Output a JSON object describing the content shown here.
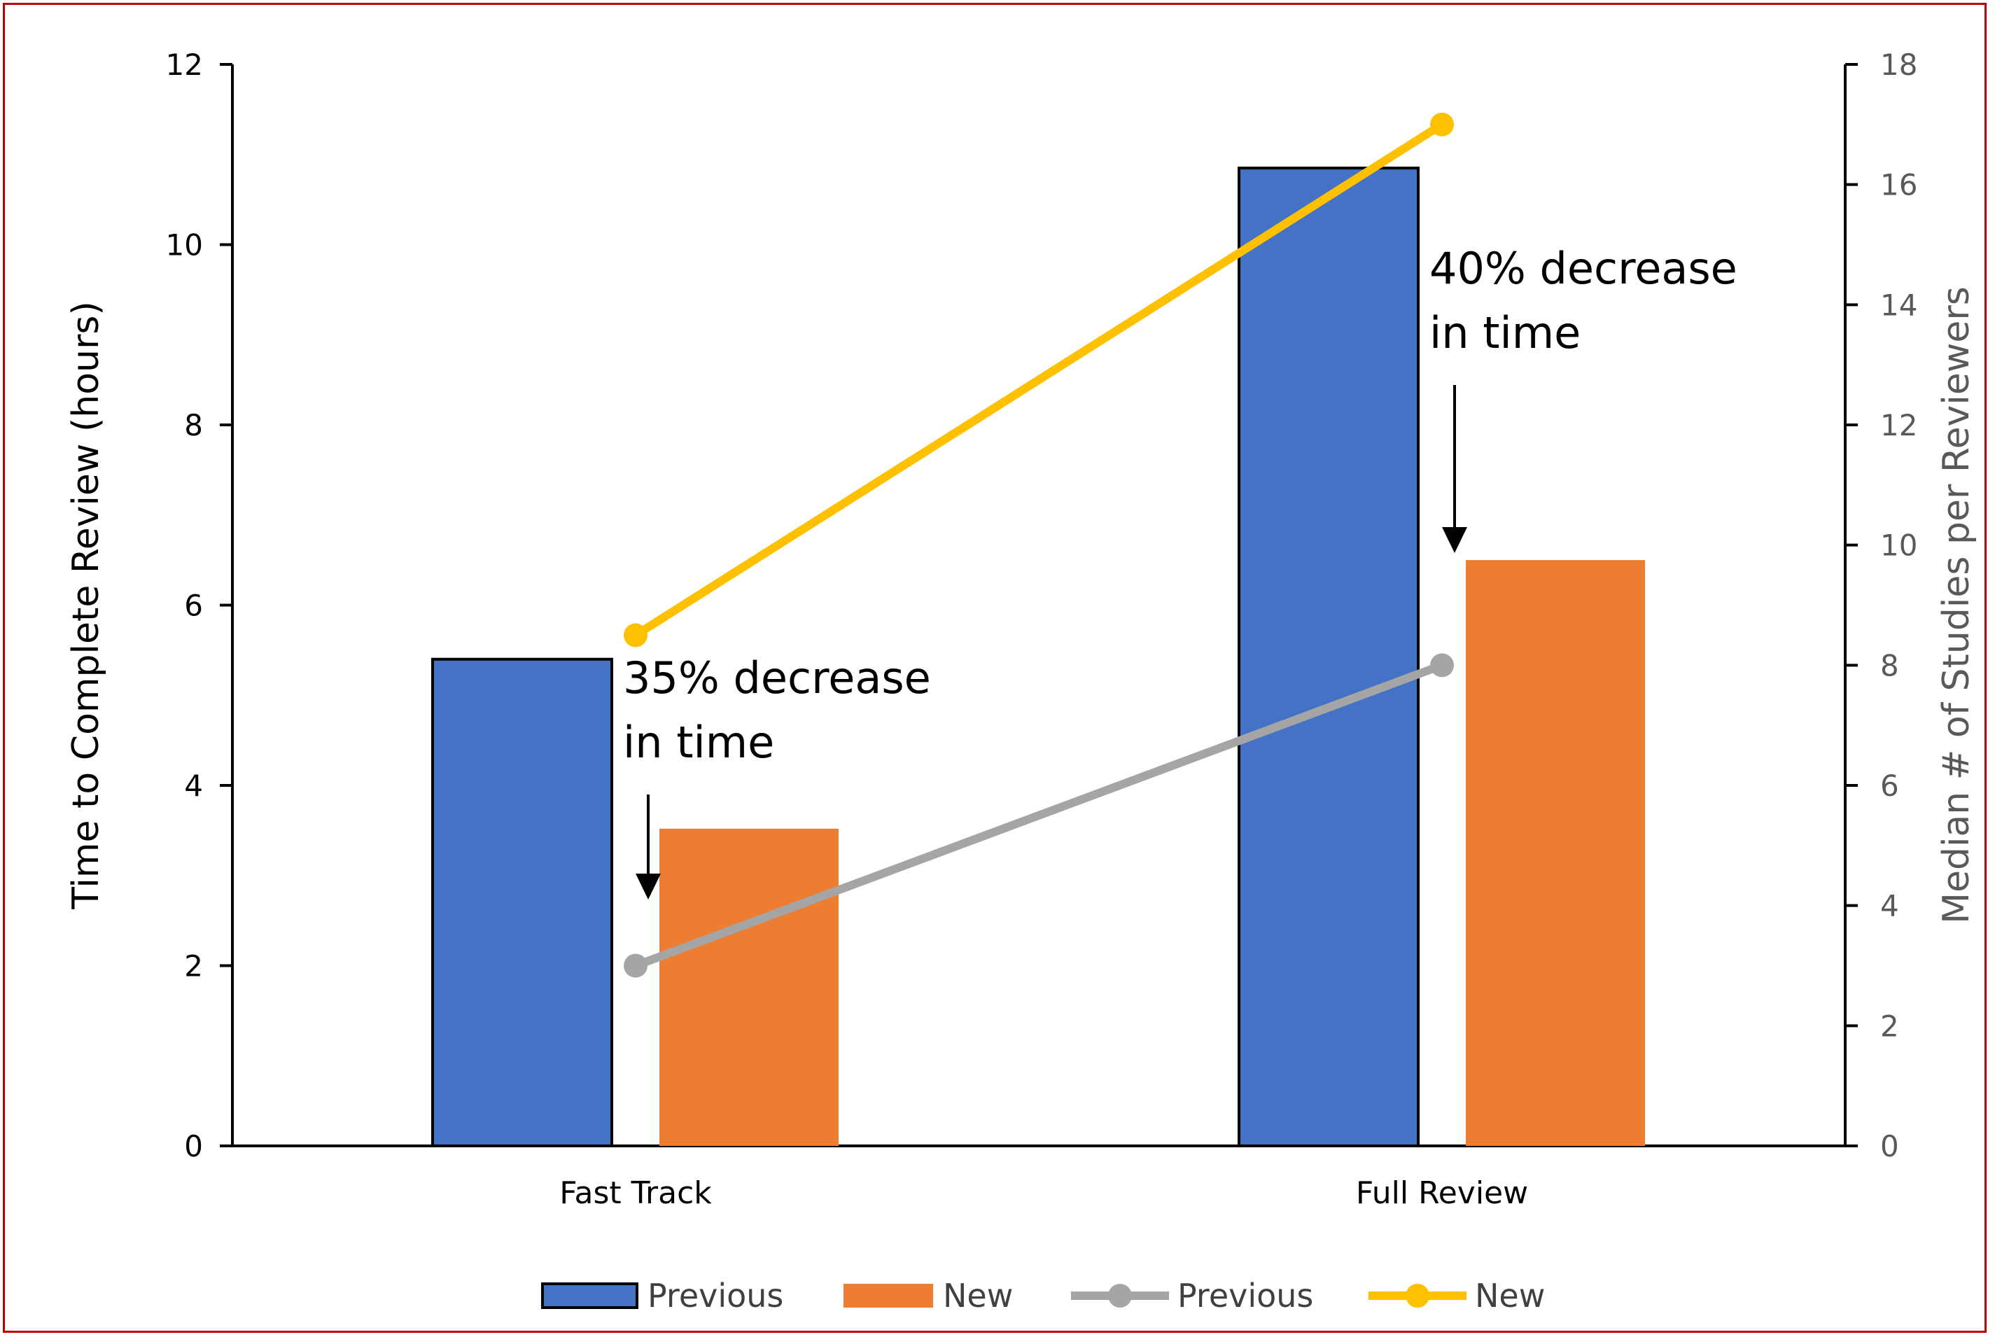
{
  "chart_data": {
    "type": "bar",
    "categories": [
      "Fast Track",
      "Full Review"
    ],
    "bar_series": [
      {
        "name": "Previous",
        "values": [
          5.4,
          10.85
        ],
        "color": "#4472C4"
      },
      {
        "name": "New",
        "values": [
          3.52,
          6.5
        ],
        "color": "#ED7D31"
      }
    ],
    "line_series": [
      {
        "name": "Previous",
        "values": [
          3,
          8
        ],
        "color": "#A5A5A5",
        "axis": "right"
      },
      {
        "name": "New",
        "values": [
          8.5,
          17
        ],
        "color": "#FFC000",
        "axis": "right"
      }
    ],
    "y_left": {
      "label": "Time to Complete Review (hours)",
      "lim": [
        0,
        12
      ],
      "ticks": [
        "0",
        "2",
        "4",
        "6",
        "8",
        "10",
        "12"
      ]
    },
    "y_right": {
      "label": "Median # of Studies per Reviewers",
      "lim": [
        0,
        18
      ],
      "ticks": [
        "0",
        "2",
        "4",
        "6",
        "8",
        "10",
        "12",
        "14",
        "16",
        "18"
      ]
    },
    "annotations": [
      {
        "category": "Fast Track",
        "lines": [
          "35% decrease",
          "in time"
        ]
      },
      {
        "category": "Full Review",
        "lines": [
          "40% decrease",
          "in time"
        ]
      }
    ],
    "legend": {
      "position": "bottom",
      "items": [
        "Previous",
        "New",
        "Previous",
        "New"
      ]
    },
    "grid": false
  }
}
